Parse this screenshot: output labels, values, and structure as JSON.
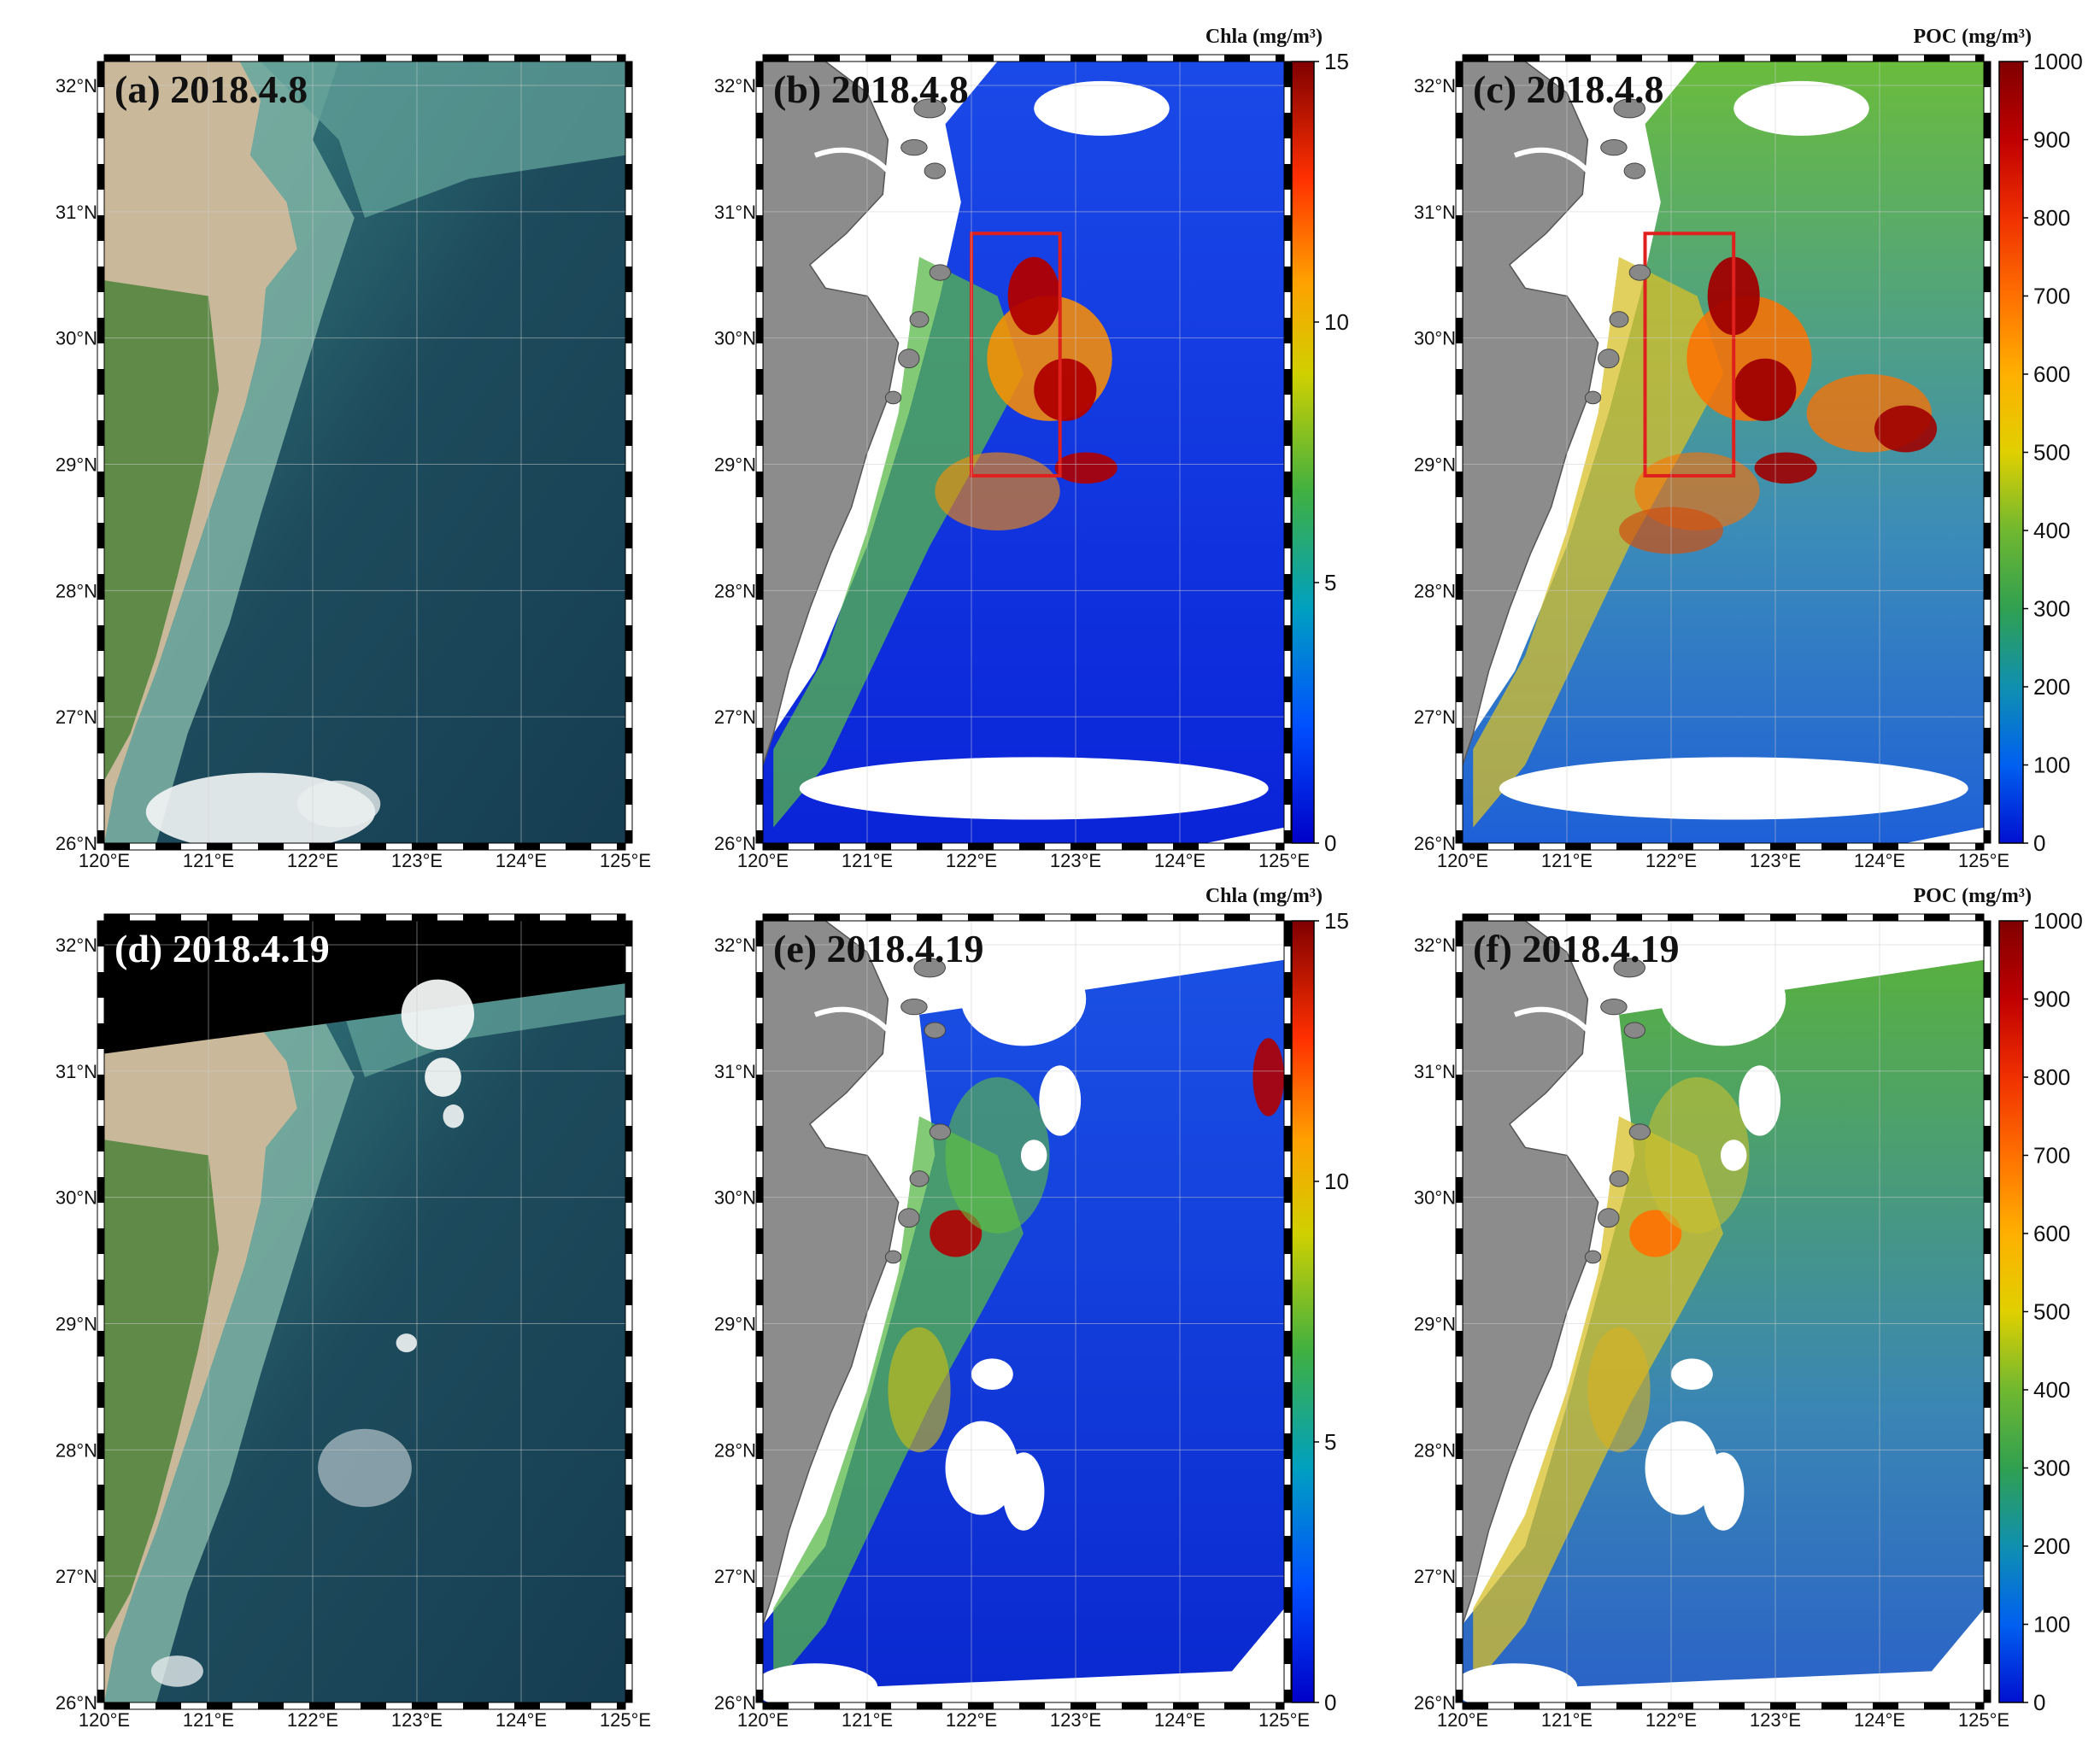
{
  "figure": {
    "lat_ticks": [
      "32°N",
      "31°N",
      "30°N",
      "29°N",
      "28°N",
      "27°N",
      "26°N"
    ],
    "lon_ticks": [
      "120°E",
      "121°E",
      "122°E",
      "123°E",
      "124°E",
      "125°E"
    ],
    "chla_colorbar": {
      "title": "Chla (mg/m³)",
      "min": 0,
      "max": 15,
      "ticks": [
        "0",
        "5",
        "10",
        "15"
      ]
    },
    "poc_colorbar": {
      "title": "POC (mg/m³)",
      "min": 0,
      "max": 1000,
      "ticks": [
        "0",
        "100",
        "200",
        "300",
        "400",
        "500",
        "600",
        "700",
        "800",
        "900",
        "1000"
      ]
    },
    "panels": [
      {
        "id": "a",
        "label": "(a) 2018.4.8",
        "kind": "true-color"
      },
      {
        "id": "b",
        "label": "(b) 2018.4.8",
        "kind": "chla"
      },
      {
        "id": "c",
        "label": "(c) 2018.4.8",
        "kind": "poc"
      },
      {
        "id": "d",
        "label": "(d) 2018.4.19",
        "kind": "true-color"
      },
      {
        "id": "e",
        "label": "(e) 2018.4.19",
        "kind": "chla"
      },
      {
        "id": "f",
        "label": "(f) 2018.4.19",
        "kind": "poc"
      }
    ],
    "colors": {
      "land_gray": "#8c8c8c",
      "sea_blue": "#1430e0",
      "highlight_box": "#e0201c",
      "true_color_sea": "#1d4b5c",
      "true_color_land": "#c9b89a"
    }
  }
}
